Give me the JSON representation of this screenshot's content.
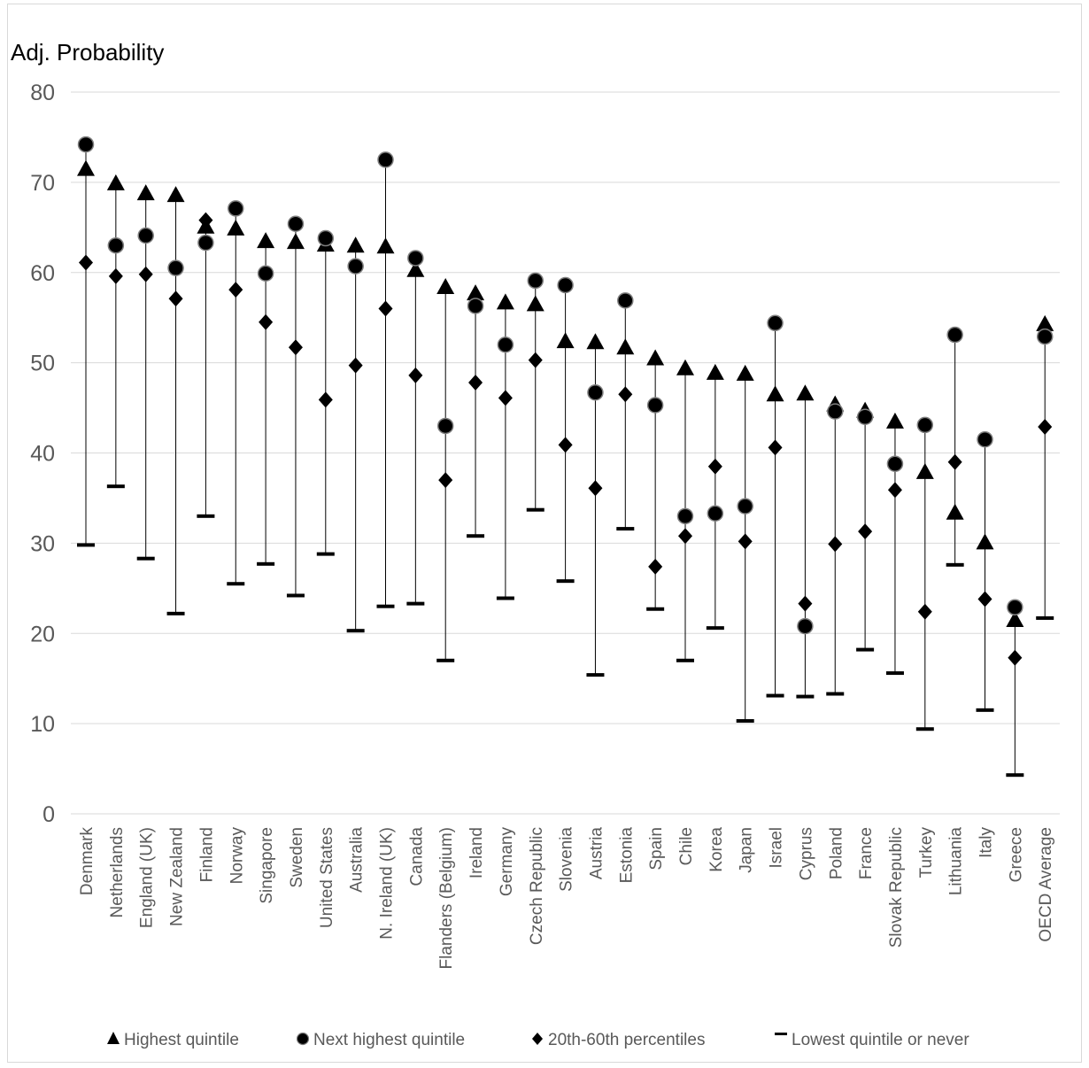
{
  "chart_data": {
    "type": "scatter",
    "ylabel": "Adj. Probability",
    "ylim": [
      0,
      80
    ],
    "yticks": [
      0,
      10,
      20,
      30,
      40,
      50,
      60,
      70,
      80
    ],
    "grid": true,
    "legend_position": "bottom",
    "categories": [
      "Denmark",
      "Netherlands",
      "England (UK)",
      "New Zealand",
      "Finland",
      "Norway",
      "Singapore",
      "Sweden",
      "United States",
      "Australia",
      "N. Ireland (UK)",
      "Canada",
      "Flanders (Belgium)",
      "Ireland",
      "Germany",
      "Czech Republic",
      "Slovenia",
      "Austria",
      "Estonia",
      "Spain",
      "Chile",
      "Korea",
      "Japan",
      "Israel",
      "Cyprus",
      "Poland",
      "France",
      "Slovak Republic",
      "Turkey",
      "Lithuania",
      "Italy",
      "Greece",
      "OECD Average"
    ],
    "series": [
      {
        "name": "Highest quintile",
        "marker": "triangle",
        "values": [
          71.5,
          69.9,
          68.8,
          68.6,
          65.1,
          64.9,
          63.5,
          63.4,
          63.1,
          63.0,
          62.9,
          60.3,
          58.4,
          57.7,
          56.7,
          56.5,
          52.4,
          52.3,
          51.7,
          50.5,
          49.4,
          48.9,
          48.8,
          46.5,
          46.6,
          45.4,
          44.7,
          43.5,
          37.9,
          33.4,
          30.1,
          21.5,
          54.3
        ]
      },
      {
        "name": "Next highest quintile",
        "marker": "circle",
        "values": [
          74.2,
          63.0,
          64.1,
          60.5,
          63.3,
          67.1,
          59.9,
          65.4,
          63.8,
          60.7,
          72.5,
          61.6,
          43.0,
          56.3,
          52.0,
          59.1,
          58.6,
          46.7,
          56.9,
          45.3,
          33.0,
          33.3,
          34.1,
          54.4,
          20.8,
          44.6,
          44.0,
          38.8,
          43.1,
          53.1,
          41.5,
          22.9,
          52.9
        ]
      },
      {
        "name": "20th-60th percentiles",
        "marker": "diamond",
        "values": [
          61.1,
          59.6,
          59.8,
          57.1,
          65.8,
          58.1,
          54.5,
          51.7,
          45.9,
          49.7,
          56.0,
          48.6,
          37.0,
          47.8,
          46.1,
          50.3,
          40.9,
          36.1,
          46.5,
          27.4,
          30.8,
          38.5,
          30.2,
          40.6,
          23.3,
          29.9,
          31.3,
          35.9,
          22.4,
          39.0,
          23.8,
          17.3,
          42.9
        ]
      },
      {
        "name": "Lowest quintile or never",
        "marker": "dash",
        "values": [
          29.8,
          36.3,
          28.3,
          22.2,
          33.0,
          25.5,
          27.7,
          24.2,
          28.8,
          20.3,
          23.0,
          23.3,
          17.0,
          30.8,
          23.9,
          33.7,
          25.8,
          15.4,
          31.6,
          22.7,
          17.0,
          20.6,
          10.3,
          13.1,
          13.0,
          13.3,
          18.2,
          15.6,
          9.4,
          27.6,
          11.5,
          4.3,
          21.7
        ]
      }
    ]
  },
  "colors": {
    "marker": "#000000",
    "grid": "#d9d9d9",
    "range_line": "#000000",
    "tick_text": "#595959"
  }
}
